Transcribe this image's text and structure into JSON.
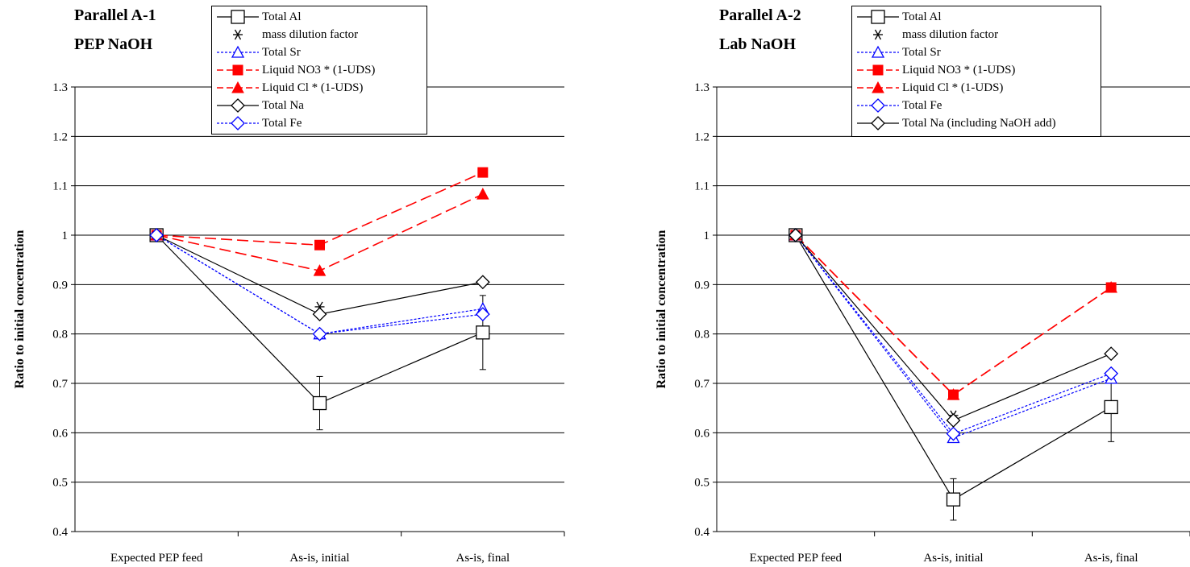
{
  "chart_data": [
    {
      "type": "line",
      "title": [
        "Parallel A-1",
        "PEP NaOH"
      ],
      "ylabel": "Ratio to initial concentration",
      "xlabel": "",
      "categories": [
        "Expected PEP feed",
        "As-is, initial",
        "As-is, final"
      ],
      "ylim": [
        0.4,
        1.3
      ],
      "yticks": [
        0.4,
        0.5,
        0.6,
        0.7,
        0.8,
        0.9,
        1,
        1.1,
        1.2,
        1.3
      ],
      "grid": "horizontal",
      "legend_position": "top-center",
      "series": [
        {
          "name": "Total Al",
          "values": [
            1.0,
            0.66,
            0.803
          ],
          "error": [
            0,
            0.054,
            0.075
          ],
          "color": "#000000",
          "line": "solid",
          "marker": "open-square",
          "connected": true
        },
        {
          "name": "mass dilution factor",
          "values": [
            1.0,
            0.855,
            null
          ],
          "color": "#000000",
          "line": "none",
          "marker": "asterisk",
          "connected": false
        },
        {
          "name": "Total Sr",
          "values": [
            1.0,
            0.8,
            0.851
          ],
          "color": "#0000ff",
          "line": "dotted",
          "marker": "open-triangle",
          "connected": true
        },
        {
          "name": "Liquid NO3 * (1-UDS)",
          "values": [
            1.0,
            0.98,
            1.127
          ],
          "color": "#ff0000",
          "line": "dashed",
          "marker": "filled-square",
          "connected": true
        },
        {
          "name": "Liquid Cl * (1-UDS)",
          "values": [
            1.0,
            0.928,
            1.083
          ],
          "color": "#ff0000",
          "line": "dashed",
          "marker": "filled-triangle",
          "connected": true
        },
        {
          "name": "Total Na",
          "values": [
            1.0,
            0.84,
            0.905
          ],
          "color": "#000000",
          "line": "solid",
          "marker": "open-diamond",
          "connected": true
        },
        {
          "name": "Total Fe",
          "values": [
            1.0,
            0.8,
            0.84
          ],
          "color": "#0000ff",
          "line": "dotted",
          "marker": "open-diamond",
          "connected": true
        }
      ]
    },
    {
      "type": "line",
      "title": [
        "Parallel A-2",
        "Lab NaOH"
      ],
      "ylabel": "Ratio to initial concentration",
      "xlabel": "",
      "categories": [
        "Expected PEP feed",
        "As-is, initial",
        "As-is, final"
      ],
      "ylim": [
        0.4,
        1.3
      ],
      "yticks": [
        0.4,
        0.5,
        0.6,
        0.7,
        0.8,
        0.9,
        1,
        1.1,
        1.2,
        1.3
      ],
      "grid": "horizontal",
      "legend_position": "top-right",
      "series": [
        {
          "name": "Total Al",
          "values": [
            1.0,
            0.465,
            0.652
          ],
          "error": [
            0,
            0.042,
            0.07
          ],
          "color": "#000000",
          "line": "solid",
          "marker": "open-square",
          "connected": true
        },
        {
          "name": "mass dilution factor",
          "values": [
            1.0,
            0.635,
            null
          ],
          "color": "#000000",
          "line": "none",
          "marker": "asterisk",
          "connected": false
        },
        {
          "name": "Total Sr",
          "values": [
            1.0,
            0.59,
            0.71
          ],
          "color": "#0000ff",
          "line": "dotted",
          "marker": "open-triangle",
          "connected": true
        },
        {
          "name": "Liquid NO3 * (1-UDS)",
          "values": [
            1.0,
            0.677,
            0.894
          ],
          "color": "#ff0000",
          "line": "dashed",
          "marker": "filled-square",
          "connected": true
        },
        {
          "name": "Liquid Cl * (1-UDS)",
          "values": [
            1.0,
            0.677,
            0.894
          ],
          "color": "#ff0000",
          "line": "dashed",
          "marker": "filled-triangle",
          "connected": true
        },
        {
          "name": "Total Fe",
          "values": [
            1.0,
            0.598,
            0.72
          ],
          "color": "#0000ff",
          "line": "dotted",
          "marker": "open-diamond",
          "connected": true
        },
        {
          "name": "Total Na (including NaOH add)",
          "values": [
            1.0,
            0.625,
            0.76
          ],
          "color": "#000000",
          "line": "solid",
          "marker": "open-diamond",
          "connected": true
        }
      ]
    }
  ]
}
